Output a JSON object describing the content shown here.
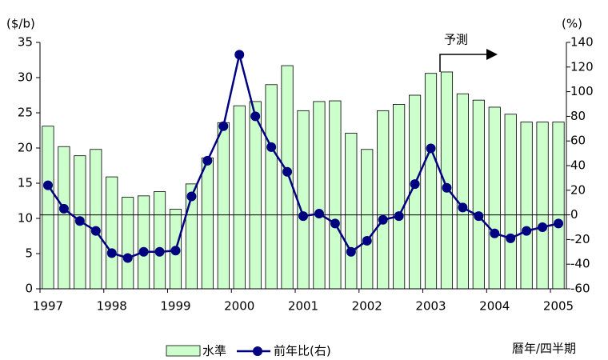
{
  "chart_data": {
    "type": "bar_line",
    "y_label": "($/b)",
    "y2_label": "(%)",
    "x_label": "暦年/四半期",
    "annotation": "予測",
    "categories": [
      "1997",
      null,
      null,
      null,
      "1998",
      null,
      null,
      null,
      "1999",
      null,
      null,
      null,
      "2000",
      null,
      null,
      null,
      "2001",
      null,
      null,
      null,
      "2002",
      null,
      null,
      null,
      "2003",
      null,
      null,
      null,
      "2004",
      null,
      null,
      null,
      "2005"
    ],
    "series": [
      {
        "name": "水準",
        "type": "bar",
        "color": "#ccffcc",
        "values": [
          23.1,
          20.2,
          18.9,
          19.8,
          15.9,
          13.0,
          13.2,
          13.8,
          11.3,
          14.9,
          18.6,
          23.6,
          26.0,
          26.6,
          29.0,
          31.7,
          25.3,
          26.6,
          26.7,
          22.1,
          19.8,
          25.3,
          26.2,
          27.5,
          30.6,
          30.8,
          27.7,
          26.8,
          25.8,
          24.8,
          23.7,
          23.7,
          23.7
        ]
      },
      {
        "name": "前年比(右)",
        "type": "line",
        "axis": "y2",
        "color": "#000080",
        "values": [
          24,
          5,
          -5,
          -13,
          -31,
          -35,
          -30,
          -30,
          -29,
          15,
          44,
          72,
          130,
          80,
          55,
          35,
          -1,
          1,
          -7,
          -30,
          -21,
          -4,
          -1,
          25,
          54,
          22,
          6,
          -1,
          -15,
          -19,
          -13,
          -10,
          -7
        ]
      }
    ],
    "ylim": [
      0,
      35
    ],
    "yticks": [
      0,
      5,
      10,
      15,
      20,
      25,
      30,
      35
    ],
    "y2lim": [
      -60,
      140
    ],
    "y2ticks": [
      -60,
      -40,
      -20,
      0,
      20,
      40,
      60,
      80,
      100,
      120,
      140
    ],
    "grid": false
  }
}
